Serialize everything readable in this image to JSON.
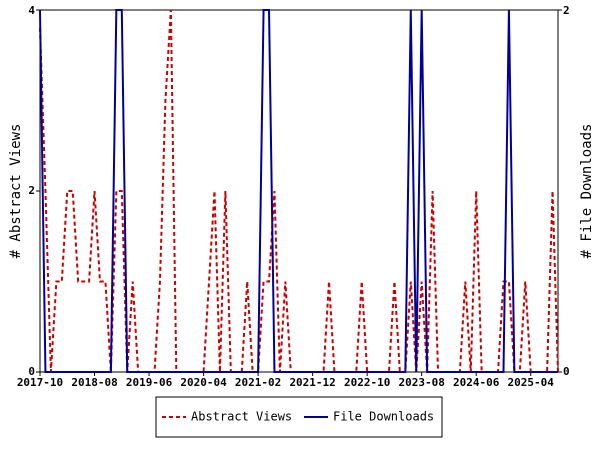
{
  "chart_data": {
    "type": "line",
    "categories": [
      "2017-10",
      null,
      null,
      null,
      null,
      null,
      null,
      null,
      null,
      null,
      "2018-08",
      null,
      null,
      null,
      null,
      null,
      null,
      null,
      null,
      null,
      "2019-06",
      null,
      null,
      null,
      null,
      null,
      null,
      null,
      null,
      null,
      "2020-04",
      null,
      null,
      null,
      null,
      null,
      null,
      null,
      null,
      null,
      "2021-02",
      null,
      null,
      null,
      null,
      null,
      null,
      null,
      null,
      null,
      "2021-12",
      null,
      null,
      null,
      null,
      null,
      null,
      null,
      null,
      null,
      "2022-10",
      null,
      null,
      null,
      null,
      null,
      null,
      null,
      null,
      null,
      "2023-08",
      null,
      null,
      null,
      null,
      null,
      null,
      null,
      null,
      null,
      "2024-06",
      null,
      null,
      null,
      null,
      null,
      null,
      null,
      null,
      null,
      "2025-04",
      null,
      null,
      null,
      null,
      null
    ],
    "series": [
      {
        "name": "Abstract Views",
        "color": "#cc0000",
        "dash": true,
        "values": [
          3.8,
          2,
          0,
          1,
          1,
          2,
          2,
          1,
          1,
          1,
          2,
          1,
          1,
          0,
          2,
          2,
          0,
          1,
          0,
          0,
          0,
          0,
          1,
          3,
          4,
          0,
          0,
          0,
          0,
          0,
          0,
          1,
          2,
          0,
          2,
          0,
          0,
          0,
          1,
          0,
          0,
          1,
          1,
          2,
          0,
          1,
          0,
          0,
          0,
          0,
          0,
          0,
          0,
          1,
          0,
          0,
          0,
          0,
          0,
          1,
          0,
          0,
          0,
          0,
          0,
          1,
          0,
          0,
          1,
          0,
          1,
          0,
          2,
          0,
          0,
          0,
          0,
          0,
          1,
          0,
          2,
          0,
          0,
          0,
          0,
          1,
          1,
          0,
          0,
          1,
          0,
          0,
          0,
          0,
          2,
          0
        ]
      },
      {
        "name": "File Downloads",
        "color": "#000099",
        "dash": false,
        "axis": "y2",
        "values": [
          2,
          0,
          0,
          0,
          0,
          0,
          0,
          0,
          0,
          0,
          0,
          0,
          0,
          0,
          2,
          2,
          0,
          0,
          0,
          0,
          0,
          0,
          0,
          0,
          0,
          0,
          0,
          0,
          0,
          0,
          0,
          0,
          0,
          0,
          0,
          0,
          0,
          0,
          0,
          0,
          0,
          2,
          2,
          0,
          0,
          0,
          0,
          0,
          0,
          0,
          0,
          0,
          0,
          0,
          0,
          0,
          0,
          0,
          0,
          0,
          0,
          0,
          0,
          0,
          0,
          0,
          0,
          0,
          2,
          0,
          2,
          0,
          0,
          0,
          0,
          0,
          0,
          0,
          0,
          0,
          0,
          0,
          0,
          0,
          0,
          0,
          2,
          0,
          0,
          0,
          0,
          0,
          0,
          0,
          0,
          0
        ]
      }
    ],
    "ylabel": "# Abstract Views",
    "y2label": "# File Downloads",
    "ylim": [
      0,
      4
    ],
    "yticks": [
      0,
      2,
      4
    ],
    "y2lim": [
      0,
      2
    ],
    "y2ticks": [
      0,
      2
    ],
    "legend": "bottom"
  }
}
